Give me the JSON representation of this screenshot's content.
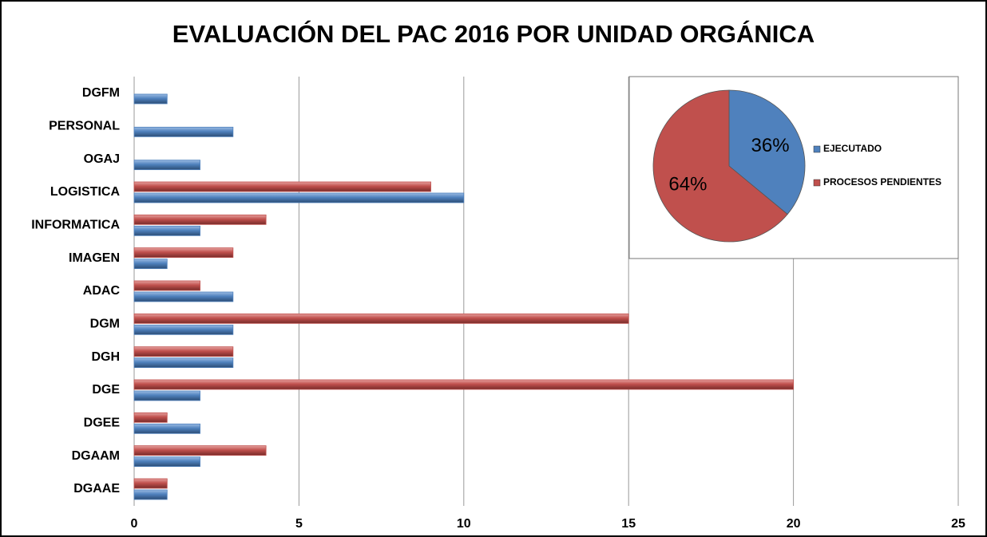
{
  "chart_data": [
    {
      "type": "bar",
      "orientation": "horizontal",
      "title": "EVALUACIÓN DEL PAC 2016 POR UNIDAD ORGÁNICA",
      "categories": [
        "DGFM",
        "PERSONAL",
        "OGAJ",
        "LOGISTICA",
        "INFORMATICA",
        "IMAGEN",
        "ADAC",
        "DGM",
        "DGH",
        "DGE",
        "DGEE",
        "DGAAM",
        "DGAAE"
      ],
      "series": [
        {
          "color": "#4f81bd",
          "values": [
            1,
            3,
            2,
            10,
            2,
            1,
            3,
            3,
            3,
            2,
            2,
            2,
            1
          ]
        },
        {
          "color": "#c0504d",
          "values": [
            null,
            null,
            null,
            9,
            4,
            3,
            2,
            15,
            3,
            20,
            1,
            4,
            1
          ]
        }
      ],
      "xlim": [
        0,
        25
      ],
      "xticks": [
        0,
        5,
        10,
        15,
        20,
        25
      ],
      "grid": true
    },
    {
      "type": "pie",
      "categories": [
        "EJECUTADO",
        "PROCESOS PENDIENTES"
      ],
      "values": [
        36,
        64
      ],
      "value_labels": [
        "36%",
        "64%"
      ],
      "colors": [
        "#4f81bd",
        "#c0504d"
      ],
      "legend": "right"
    }
  ]
}
